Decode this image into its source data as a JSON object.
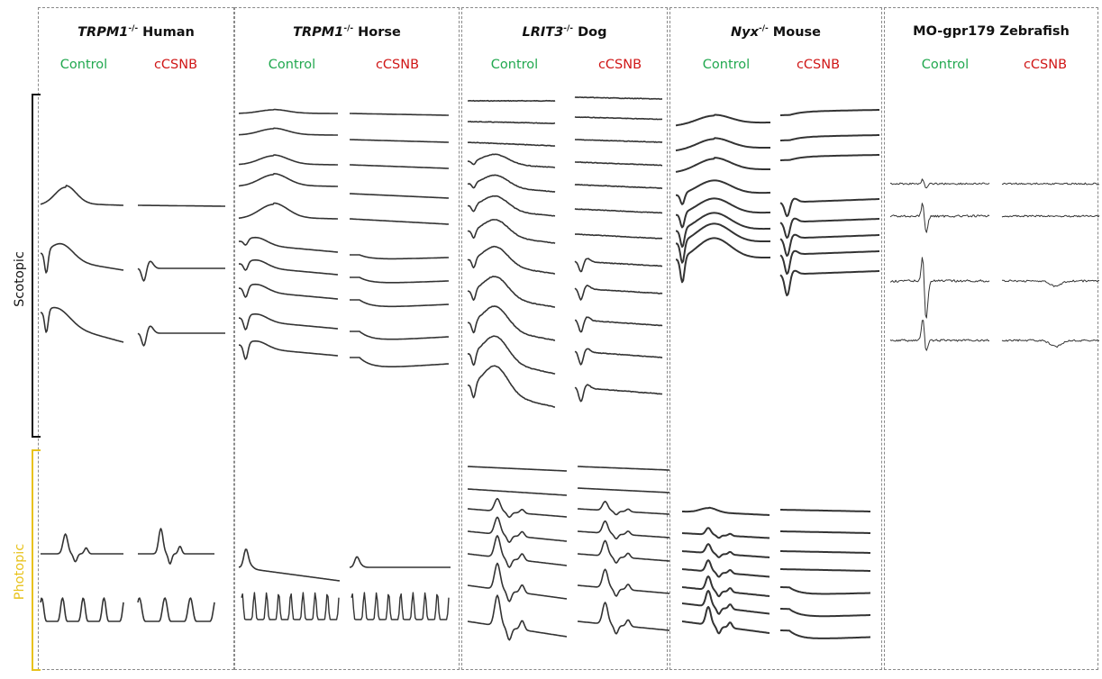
{
  "condition_labels": {
    "scotopic": "Scotopic",
    "photopic": "Photopic"
  },
  "colors": {
    "control": "#21a84f",
    "disease": "#d01717",
    "photopic_bracket": "#e8c21b",
    "scotopic_bracket": "#111111",
    "trace": "#333333"
  },
  "panels": [
    {
      "gene": "TRPM1",
      "genotype_sup": "-/-",
      "species": "Human",
      "control_label": "Control",
      "disease_label": "cCSNB"
    },
    {
      "gene": "TRPM1",
      "genotype_sup": "-/-",
      "species": "Horse",
      "control_label": "Control",
      "disease_label": "cCSNB"
    },
    {
      "gene": "LRIT3",
      "genotype_sup": "-/-",
      "species": "Dog",
      "control_label": "Control",
      "disease_label": "cCSNB"
    },
    {
      "gene": "Nyx",
      "genotype_sup": "-/-",
      "species": "Mouse",
      "control_label": "Control",
      "disease_label": "cCSNB"
    },
    {
      "title": "MO-gpr179 Zebrafish",
      "control_label": "Control",
      "disease_label": "cCSNB"
    }
  ]
}
